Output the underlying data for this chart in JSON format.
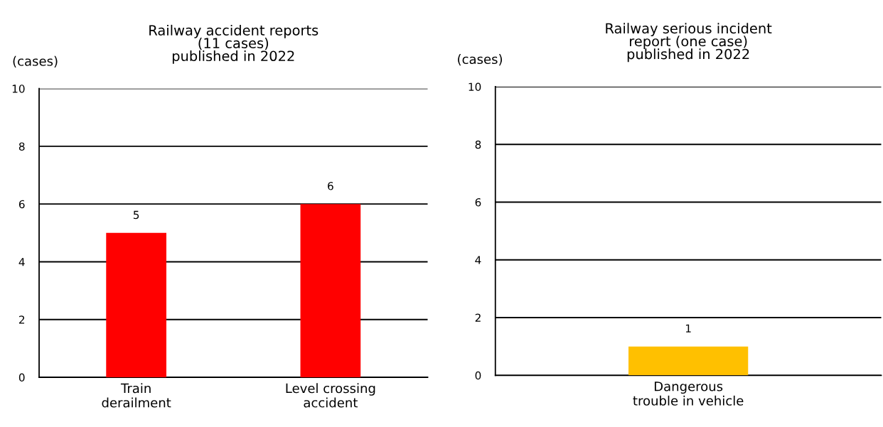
{
  "chart_data": [
    {
      "type": "bar",
      "title": "Railway accident reports\n(11 cases)\npublished in 2022",
      "ylabel": "(cases)",
      "categories": [
        "Train\nderailment",
        "Level crossing\naccident"
      ],
      "values": [
        5,
        6
      ],
      "color": "#ff0000",
      "ylim": [
        0,
        10
      ],
      "yticks": [
        0,
        2,
        4,
        6,
        8,
        10
      ],
      "grid": "y",
      "data_labels": true
    },
    {
      "type": "bar",
      "title": "Railway serious incident\nreport (one case)\npublished in 2022",
      "ylabel": "(cases)",
      "categories": [
        "Dangerous\ntrouble in vehicle"
      ],
      "values": [
        1
      ],
      "color": "#ffc000",
      "ylim": [
        0,
        10
      ],
      "yticks": [
        0,
        2,
        4,
        6,
        8,
        10
      ],
      "grid": "y",
      "data_labels": true
    }
  ]
}
